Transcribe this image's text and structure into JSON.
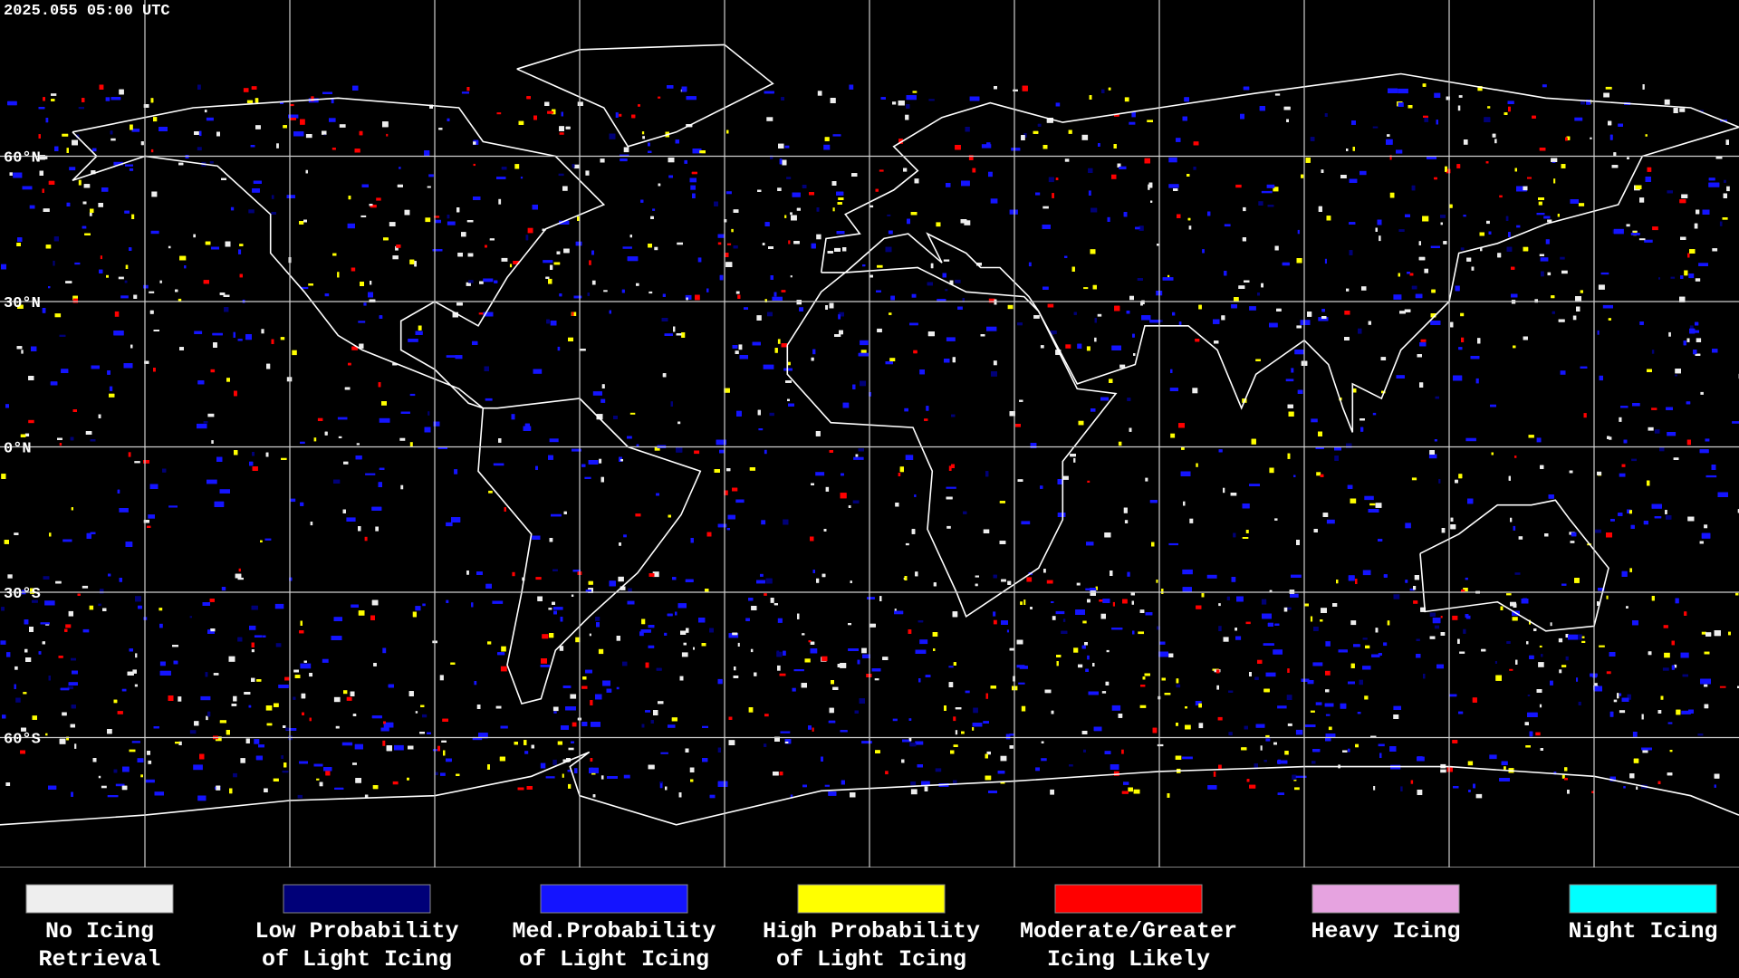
{
  "header": {
    "timestamp": "2025.055 05:00 UTC"
  },
  "map": {
    "latitude_labels": [
      "60°N",
      "30°N",
      "0°N",
      "30°S",
      "60°S"
    ]
  },
  "legend": {
    "items": [
      {
        "lines": [
          "No Icing",
          "Retrieval"
        ],
        "color": "#eeeeee"
      },
      {
        "lines": [
          "Low Probability",
          "of Light Icing"
        ],
        "color": "#000078"
      },
      {
        "lines": [
          "Med.Probability",
          "of Light Icing"
        ],
        "color": "#1414ff"
      },
      {
        "lines": [
          "High Probability",
          "of Light Icing"
        ],
        "color": "#ffff00"
      },
      {
        "lines": [
          "Moderate/Greater",
          "Icing Likely"
        ],
        "color": "#ff0000"
      },
      {
        "lines": [
          "Heavy Icing"
        ],
        "color": "#e6a3e0"
      },
      {
        "lines": [
          "Night Icing"
        ],
        "color": "#00ffff"
      }
    ]
  }
}
